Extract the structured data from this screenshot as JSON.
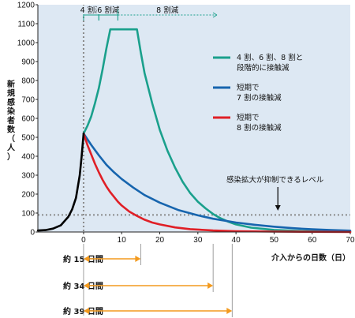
{
  "chart_data": {
    "type": "line",
    "ylabel": "新規感染者数（人）",
    "xlabel": "介入からの日数（日）",
    "xlim": [
      -12,
      70
    ],
    "ylim": [
      0,
      1200
    ],
    "x_ticks": [
      0,
      10,
      20,
      30,
      40,
      50,
      60,
      70
    ],
    "y_ticks": [
      0,
      100,
      200,
      300,
      400,
      500,
      600,
      700,
      800,
      900,
      1000,
      1100,
      1200
    ],
    "grid": false,
    "background": "#dde8f3",
    "threshold": {
      "value": 90,
      "label": "感染拡大が抑制できるレベル",
      "arrow_x": 51
    },
    "phases": [
      {
        "label": "4 割減",
        "from": 0,
        "to": 4
      },
      {
        "label": "6 割減",
        "from": 4,
        "to": 9
      },
      {
        "label": "8 割減",
        "from": 9,
        "to": 35
      }
    ],
    "series": [
      {
        "name": "4 割、6 割、8 割と段階的に接触減",
        "color": "#1aa08c",
        "points": [
          [
            0,
            520
          ],
          [
            1,
            560
          ],
          [
            2,
            610
          ],
          [
            3,
            680
          ],
          [
            4,
            760
          ],
          [
            5,
            860
          ],
          [
            6,
            970
          ],
          [
            7,
            1070
          ],
          [
            14,
            1070
          ],
          [
            15,
            950
          ],
          [
            16,
            840
          ],
          [
            18,
            680
          ],
          [
            20,
            540
          ],
          [
            22,
            430
          ],
          [
            24,
            340
          ],
          [
            26,
            265
          ],
          [
            28,
            205
          ],
          [
            30,
            160
          ],
          [
            32,
            125
          ],
          [
            34,
            95
          ],
          [
            36,
            72
          ],
          [
            38,
            54
          ],
          [
            40,
            40
          ],
          [
            44,
            23
          ],
          [
            50,
            11
          ],
          [
            56,
            6
          ],
          [
            62,
            3
          ],
          [
            70,
            1
          ]
        ]
      },
      {
        "name": "短期で7 割の接触減",
        "color": "#1765ae",
        "points": [
          [
            0,
            520
          ],
          [
            2,
            460
          ],
          [
            4,
            405
          ],
          [
            6,
            355
          ],
          [
            8,
            315
          ],
          [
            10,
            280
          ],
          [
            13,
            235
          ],
          [
            16,
            195
          ],
          [
            20,
            155
          ],
          [
            25,
            115
          ],
          [
            30,
            88
          ],
          [
            34,
            70
          ],
          [
            40,
            50
          ],
          [
            45,
            38
          ],
          [
            50,
            28
          ],
          [
            55,
            20
          ],
          [
            60,
            14
          ],
          [
            65,
            10
          ],
          [
            70,
            7
          ]
        ]
      },
      {
        "name": "短期で8 割の接触減",
        "color": "#e01f26",
        "points": [
          [
            0,
            520
          ],
          [
            1,
            460
          ],
          [
            2,
            410
          ],
          [
            3,
            360
          ],
          [
            4,
            315
          ],
          [
            5,
            275
          ],
          [
            6,
            240
          ],
          [
            7,
            210
          ],
          [
            8,
            185
          ],
          [
            9,
            160
          ],
          [
            10,
            140
          ],
          [
            12,
            108
          ],
          [
            14,
            85
          ],
          [
            16,
            65
          ],
          [
            18,
            50
          ],
          [
            20,
            40
          ],
          [
            24,
            24
          ],
          [
            28,
            15
          ],
          [
            34,
            8
          ],
          [
            40,
            4
          ],
          [
            50,
            2
          ],
          [
            70,
            0
          ]
        ]
      },
      {
        "name": "",
        "color": "#000000",
        "points": [
          [
            -12,
            8
          ],
          [
            -10,
            10
          ],
          [
            -8,
            18
          ],
          [
            -6,
            35
          ],
          [
            -4,
            80
          ],
          [
            -3,
            120
          ],
          [
            -2,
            180
          ],
          [
            -1.5,
            240
          ],
          [
            -1,
            300
          ],
          [
            -0.5,
            400
          ],
          [
            0,
            520
          ]
        ]
      }
    ],
    "durations": [
      {
        "label": "約 15 日間",
        "days": 15
      },
      {
        "label": "約 34 日間",
        "days": 34
      },
      {
        "label": "約 39 日間",
        "days": 39
      }
    ],
    "duration_color": "#f39a1e"
  }
}
